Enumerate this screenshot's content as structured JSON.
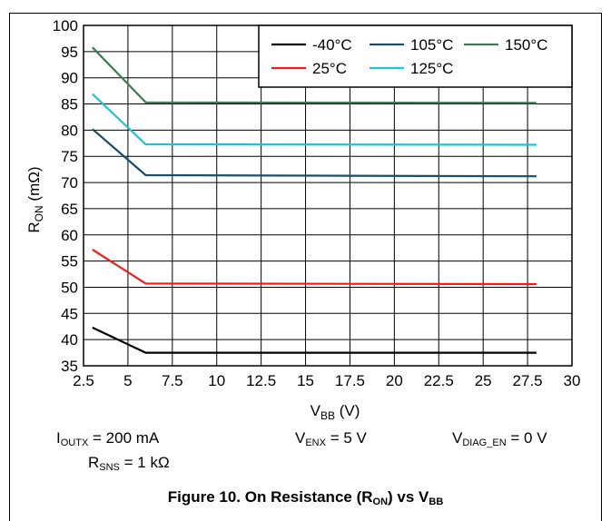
{
  "chart_data": {
    "type": "line",
    "xlabel": {
      "main": "V",
      "sub": "BB",
      "unit": "(V)"
    },
    "ylabel": {
      "main": "R",
      "sub": "ON",
      "unit": "(mΩ)"
    },
    "xlim": [
      2.5,
      30
    ],
    "ylim": [
      35,
      100
    ],
    "x_ticks": [
      "2.5",
      "5",
      "7.5",
      "10",
      "12.5",
      "15",
      "17.5",
      "20",
      "22.5",
      "25",
      "27.5",
      "30"
    ],
    "y_ticks": [
      "35",
      "40",
      "45",
      "50",
      "55",
      "60",
      "65",
      "70",
      "75",
      "80",
      "85",
      "90",
      "95",
      "100"
    ],
    "grid": true,
    "legend_position": "top-right",
    "series": [
      {
        "name": "-40°C",
        "color": "#000000",
        "x": [
          3,
          6,
          28
        ],
        "y": [
          42.3,
          37.5,
          37.5
        ]
      },
      {
        "name": "25°C",
        "color": "#ee1c1c",
        "x": [
          3,
          6,
          28
        ],
        "y": [
          57.2,
          50.7,
          50.6
        ]
      },
      {
        "name": "105°C",
        "color": "#1b4f66",
        "x": [
          3,
          6,
          28
        ],
        "y": [
          80.2,
          71.4,
          71.2
        ]
      },
      {
        "name": "125°C",
        "color": "#1ec2d2",
        "x": [
          3,
          6,
          28
        ],
        "y": [
          86.9,
          77.3,
          77.2
        ]
      },
      {
        "name": "150°C",
        "color": "#3d7a54",
        "x": [
          3,
          6,
          28
        ],
        "y": [
          95.8,
          85.3,
          85.2
        ]
      }
    ]
  },
  "conditions": {
    "ioutx": {
      "main": "I",
      "sub": "OUTX",
      "rest": " = 200 mA"
    },
    "venx": {
      "main": "V",
      "sub": "ENX",
      "rest": " = 5 V"
    },
    "vdiag": {
      "main": "V",
      "sub": "DIAG_EN",
      "rest": " = 0 V"
    },
    "rsns": {
      "main": "R",
      "sub": "SNS",
      "rest": " = 1 kΩ"
    }
  },
  "caption": {
    "before": "Figure 10. On Resistance (R",
    "sub1": "ON",
    "middle": ") vs V",
    "sub2": "BB"
  }
}
